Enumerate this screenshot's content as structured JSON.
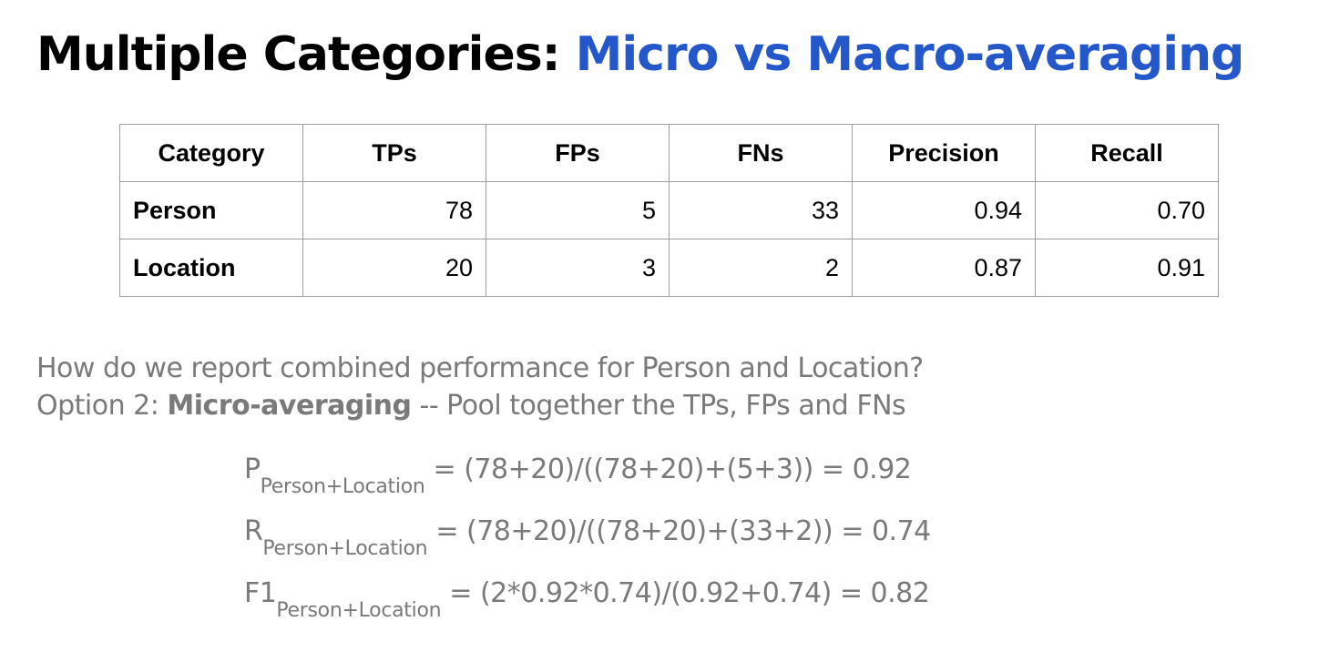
{
  "title": {
    "main": "Multiple Categories: ",
    "accent": "Micro vs Macro-averaging",
    "accent_color": "#2457c9"
  },
  "table": {
    "headers": [
      "Category",
      "TPs",
      "FPs",
      "FNs",
      "Precision",
      "Recall"
    ],
    "rows": [
      [
        "Person",
        "78",
        "5",
        "33",
        "0.94",
        "0.70"
      ],
      [
        "Location",
        "20",
        "3",
        "2",
        "0.87",
        "0.91"
      ]
    ]
  },
  "body": {
    "question": "How do we report combined performance for Person and Location?",
    "option_prefix": "Option 2: ",
    "option_bold": "Micro-averaging",
    "option_rest": " -- Pool together the TPs, FPs and FNs"
  },
  "formulas": [
    {
      "symbol": "P",
      "subscript": "Person+Location",
      "expression": " = (78+20)/((78+20)+(5+3)) = 0.92"
    },
    {
      "symbol": "R",
      "subscript": "Person+Location",
      "expression": " = (78+20)/((78+20)+(33+2)) = 0.74"
    },
    {
      "symbol": "F1",
      "subscript": "Person+Location",
      "expression": " = (2*0.92*0.74)/(0.92+0.74) = 0.82"
    }
  ]
}
